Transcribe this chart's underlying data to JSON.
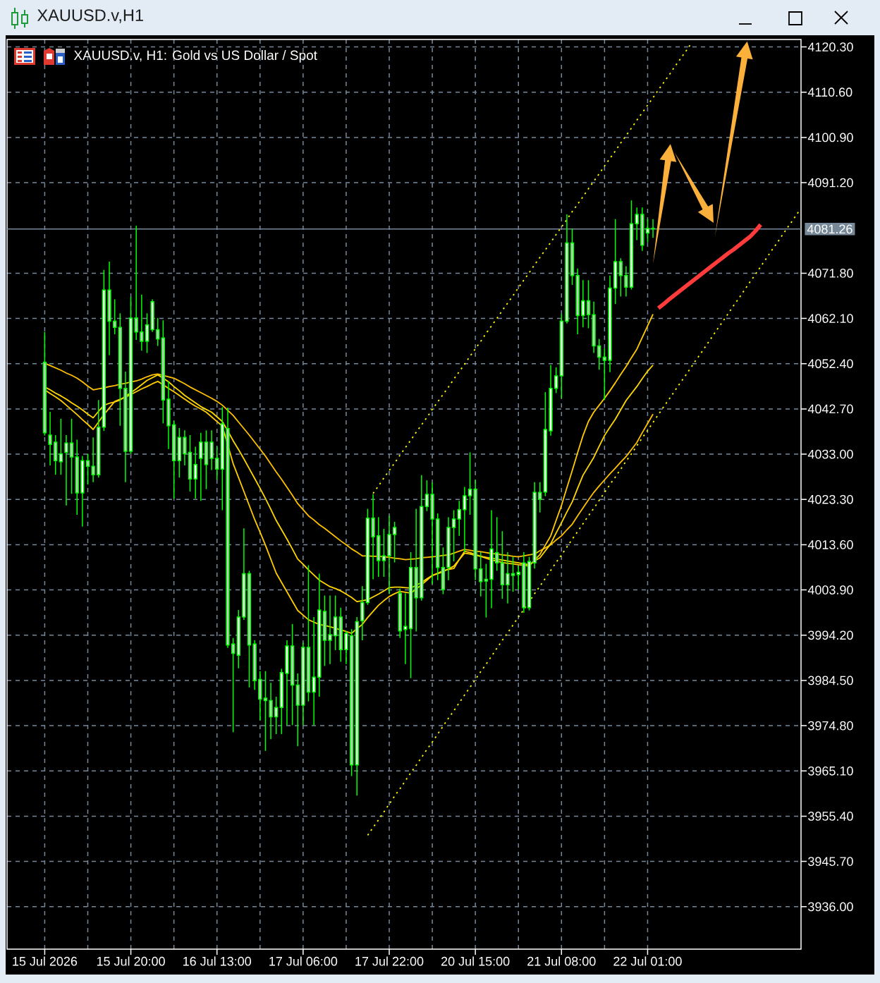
{
  "chart_data": {
    "type": "candlestick",
    "title": "XAUUSD.v,H1",
    "subtitle": "XAUUSD.v, H1: Gold vs US Dollar / Spot",
    "categories": [
      "15 Jul 2026",
      null,
      null,
      null,
      null,
      null,
      null,
      null,
      null,
      null,
      null,
      null,
      null,
      null,
      null,
      null,
      "15 Jul 20:00",
      null,
      null,
      null,
      null,
      null,
      null,
      null,
      null,
      null,
      null,
      null,
      null,
      null,
      null,
      null,
      "16 Jul 13:00",
      null,
      null,
      null,
      null,
      null,
      null,
      null,
      null,
      null,
      null,
      null,
      null,
      null,
      null,
      null,
      "17 Jul 06:00",
      null,
      null,
      null,
      null,
      null,
      null,
      null,
      null,
      null,
      null,
      null,
      null,
      null,
      null,
      null,
      "17 Jul 22:00",
      null,
      null,
      null,
      null,
      null,
      null,
      null,
      null,
      null,
      null,
      null,
      null,
      null,
      null,
      null,
      "20 Jul 15:00",
      null,
      null,
      null,
      null,
      null,
      null,
      null,
      null,
      null,
      null,
      null,
      null,
      null,
      null,
      null,
      "21 Jul 08:00",
      null,
      null,
      null,
      null,
      null,
      null,
      null,
      null,
      null,
      null,
      null,
      null,
      null,
      null,
      null,
      "22 Jul 01:00",
      null,
      null,
      null,
      null,
      null,
      null,
      null,
      null,
      null,
      null,
      null,
      null,
      null,
      null,
      null,
      null,
      null,
      null,
      null,
      null,
      null,
      null,
      null,
      null,
      null,
      null,
      null,
      null
    ],
    "ohlc": [
      [
        4052.7,
        4059.2,
        4037.0,
        4037.6
      ],
      [
        4037.1,
        4042.1,
        4030.6,
        4035.1
      ],
      [
        4035.6,
        4037.1,
        4028.6,
        4031.6
      ],
      [
        4031.4,
        4040.6,
        4028.6,
        4033.1
      ],
      [
        4033.4,
        4037.1,
        4022.0,
        4035.4
      ],
      [
        4035.4,
        4040.6,
        4024.5,
        4032.4
      ],
      [
        4032.4,
        4036.1,
        4020.0,
        4024.7
      ],
      [
        4024.7,
        4032.6,
        4017.5,
        4031.6
      ],
      [
        4031.6,
        4033.1,
        4026.5,
        4030.4
      ],
      [
        4030.4,
        4036.6,
        4027.0,
        4028.6
      ],
      [
        4028.6,
        4044.6,
        4028.0,
        4038.8
      ],
      [
        4038.8,
        4072.5,
        4038.0,
        4068.2
      ],
      [
        4068.2,
        4074.3,
        4054.2,
        4061.5
      ],
      [
        4061.5,
        4066.2,
        4058.7,
        4060.2
      ],
      [
        4060.2,
        4063.2,
        4039.1,
        4047.1
      ],
      [
        4047.1,
        4050.7,
        4027.0,
        4033.6
      ],
      [
        4033.6,
        4066.7,
        4033.0,
        4062.2
      ],
      [
        4062.2,
        4082.0,
        4057.5,
        4059.2
      ],
      [
        4059.2,
        4067.2,
        4055.2,
        4057.2
      ],
      [
        4057.2,
        4063.2,
        4054.7,
        4060.7
      ],
      [
        4059.7,
        4066.2,
        4059.2,
        4065.7
      ],
      [
        4059.7,
        4062.2,
        4056.2,
        4057.7
      ],
      [
        4057.9,
        4061.7,
        4039.6,
        4044.6
      ],
      [
        4044.8,
        4048.6,
        4034.1,
        4039.1
      ],
      [
        4039.3,
        4040.1,
        4023.5,
        4031.6
      ],
      [
        4031.6,
        4038.6,
        4028.0,
        4036.6
      ],
      [
        4036.6,
        4038.1,
        4030.6,
        4033.1
      ],
      [
        4033.4,
        4037.1,
        4025.0,
        4027.7
      ],
      [
        4027.7,
        4034.6,
        4023.5,
        4030.8
      ],
      [
        4032.1,
        4037.6,
        4023.0,
        4035.6
      ],
      [
        4035.6,
        4038.1,
        4025.5,
        4030.8
      ],
      [
        4032.1,
        4038.1,
        4029.6,
        4035.6
      ],
      [
        4032.1,
        4034.6,
        4027.5,
        4029.8
      ],
      [
        4029.8,
        4043.1,
        4021.0,
        4039.5
      ],
      [
        4038.5,
        4043.0,
        3991.5,
        3992.1
      ],
      [
        3992.3,
        3993.6,
        3973.4,
        3990.3
      ],
      [
        3989.9,
        3999.6,
        3987.1,
        3998.1
      ],
      [
        3998.1,
        4017.1,
        3997.5,
        4007.4
      ],
      [
        4007.4,
        4008.0,
        3983.0,
        3992.1
      ],
      [
        3992.3,
        3993.1,
        3982.5,
        3984.5
      ],
      [
        3984.7,
        3986.5,
        3976.0,
        3980.5
      ],
      [
        3980.7,
        3986.5,
        3969.4,
        3980.2
      ],
      [
        3980.2,
        3984.0,
        3971.9,
        3976.7
      ],
      [
        3976.7,
        3981.0,
        3973.0,
        3978.7
      ],
      [
        3978.7,
        3987.0,
        3973.0,
        3986.2
      ],
      [
        3986.0,
        3993.1,
        3974.9,
        3991.9
      ],
      [
        3991.9,
        3996.6,
        3974.9,
        3983.5
      ],
      [
        3983.5,
        3986.0,
        3970.4,
        3979.2
      ],
      [
        3979.2,
        3992.6,
        3974.9,
        3991.6
      ],
      [
        3991.6,
        4009.2,
        3980.0,
        3982.0
      ],
      [
        3982.0,
        3998.1,
        3974.9,
        3985.2
      ],
      [
        3985.2,
        4007.4,
        3981.0,
        3999.6
      ],
      [
        3999.3,
        4002.7,
        3987.6,
        3993.1
      ],
      [
        3993.1,
        4002.7,
        3988.0,
        3994.3
      ],
      [
        3994.1,
        4002.7,
        3991.0,
        3998.1
      ],
      [
        3998.1,
        4000.1,
        3988.5,
        3991.1
      ],
      [
        3991.1,
        3995.1,
        3988.0,
        3994.6
      ],
      [
        3994.1,
        3995.5,
        3964.0,
        3966.4
      ],
      [
        3966.4,
        3998.1,
        3959.8,
        3997.1
      ],
      [
        3997.3,
        4004.7,
        3993.1,
        4001.2
      ],
      [
        4001.2,
        4021.3,
        4000.7,
        4019.3
      ],
      [
        4019.3,
        4024.4,
        4006.2,
        4015.3
      ],
      [
        4015.5,
        4019.5,
        4006.7,
        4010.2
      ],
      [
        4010.2,
        4017.0,
        4006.7,
        4011.2
      ],
      [
        4011.2,
        4019.8,
        4003.0,
        4015.8
      ],
      [
        4015.8,
        4018.5,
        4009.8,
        4017.3
      ],
      [
        4003.2,
        4004.2,
        3993.6,
        3995.1
      ],
      [
        3995.4,
        4003.2,
        3988.0,
        3996.1
      ],
      [
        3995.6,
        4012.0,
        3985.0,
        4008.7
      ],
      [
        4008.7,
        4021.3,
        3995.0,
        4002.2
      ],
      [
        4002.2,
        4028.5,
        4001.6,
        4021.8
      ],
      [
        4021.8,
        4027.4,
        4020.8,
        4024.4
      ],
      [
        4024.4,
        4026.9,
        4005.2,
        4019.1
      ],
      [
        4019.1,
        4020.3,
        4006.0,
        4008.7
      ],
      [
        4008.7,
        4013.0,
        4003.0,
        4004.0
      ],
      [
        4008.7,
        4019.5,
        4006.0,
        4017.3
      ],
      [
        4017.3,
        4021.0,
        4010.0,
        4019.1
      ],
      [
        4019.1,
        4023.0,
        4015.5,
        4021.1
      ],
      [
        4021.1,
        4026.0,
        4012.0,
        4024.1
      ],
      [
        4024.1,
        4033.4,
        4020.0,
        4025.5
      ],
      [
        4025.5,
        4027.5,
        4006.0,
        4008.4
      ],
      [
        4008.4,
        4012.0,
        4002.5,
        4005.7
      ],
      [
        4005.8,
        4009.5,
        3998.0,
        4006.2
      ],
      [
        4006.2,
        4021.0,
        4000.0,
        4012.7
      ],
      [
        4011.9,
        4019.5,
        4008.0,
        4009.7
      ],
      [
        4009.7,
        4016.5,
        4002.0,
        4005.0
      ],
      [
        4005.0,
        4012.0,
        4001.0,
        4007.4
      ],
      [
        4007.4,
        4011.0,
        4003.5,
        4007.0
      ],
      [
        4007.2,
        4009.0,
        4004.0,
        4007.7
      ],
      [
        4009.7,
        4012.0,
        3999.0,
        4000.1
      ],
      [
        4000.1,
        4011.0,
        3999.5,
        4010.0
      ],
      [
        4009.7,
        4027.0,
        4008.5,
        4024.8
      ],
      [
        4024.8,
        4027.0,
        4020.5,
        4023.3
      ],
      [
        4024.9,
        4046.3,
        4024.0,
        4038.3
      ],
      [
        4038.0,
        4052.1,
        4037.0,
        4047.1
      ],
      [
        4047.1,
        4051.6,
        4046.1,
        4049.8
      ],
      [
        4049.8,
        4063.0,
        4045.0,
        4061.5
      ],
      [
        4061.5,
        4084.4,
        4061.0,
        4078.3
      ],
      [
        4078.3,
        4081.4,
        4069.3,
        4071.3
      ],
      [
        4071.3,
        4072.8,
        4058.7,
        4062.7
      ],
      [
        4062.7,
        4070.3,
        4060.2,
        4065.9
      ],
      [
        4065.9,
        4070.3,
        4060.0,
        4062.9
      ],
      [
        4062.9,
        4065.7,
        4054.7,
        4056.2
      ],
      [
        4056.2,
        4057.7,
        4051.1,
        4053.8
      ],
      [
        4053.8,
        4055.7,
        4044.6,
        4053.1
      ],
      [
        4053.1,
        4071.3,
        4050.6,
        4068.6
      ],
      [
        4068.6,
        4083.4,
        4065.2,
        4074.3
      ],
      [
        4074.3,
        4075.0,
        4066.8,
        4071.3
      ],
      [
        4071.3,
        4073.3,
        4066.8,
        4068.8
      ],
      [
        4068.8,
        4087.4,
        4068.3,
        4082.4
      ],
      [
        4082.4,
        4085.9,
        4078.9,
        4084.4
      ],
      [
        4084.4,
        4085.9,
        4076.6,
        4077.8
      ],
      [
        4080.4,
        4083.4,
        4078.4,
        4081.4
      ],
      [
        4081.4,
        4083.4,
        4079.4,
        4081.3
      ],
      null,
      null,
      null,
      null,
      null,
      null,
      null,
      null,
      null,
      null,
      null,
      null,
      null,
      null,
      null,
      null,
      null,
      null,
      null,
      null,
      null,
      null,
      null,
      null,
      null,
      null,
      null
    ],
    "color": "#00ff00",
    "colors": [
      "#c8c8c8",
      "#c8c8c8",
      "#c8c8c8",
      "#ffffff",
      "#ffffff",
      "#c8c8c8",
      "#c8c8c8",
      "#ffffff",
      "#c8c8c8",
      "#c8c8c8",
      "#ffffff",
      "#ffffff",
      "#c8c8c8",
      "#c8c8c8",
      "#c8c8c8",
      "#c8c8c8",
      "#ffffff",
      "#c8c8c8",
      "#c8c8c8",
      "#ffffff",
      "#ffffff",
      "#c8c8c8",
      "#c8c8c8",
      "#c8c8c8",
      "#c8c8c8",
      "#ffffff",
      "#c8c8c8",
      "#c8c8c8",
      "#ffffff",
      "#ffffff",
      "#c8c8c8",
      "#ffffff",
      "#c8c8c8",
      "#ffffff",
      "#c8c8c8",
      "#c8c8c8",
      "#ffffff",
      "#ffffff",
      "#c8c8c8",
      "#c8c8c8",
      "#c8c8c8",
      "#c8c8c8",
      "#c8c8c8",
      "#ffffff",
      "#ffffff",
      "#ffffff",
      "#c8c8c8",
      "#c8c8c8",
      "#ffffff",
      "#c8c8c8",
      "#ffffff",
      "#ffffff",
      "#c8c8c8",
      "#ffffff",
      "#ffffff",
      "#c8c8c8",
      "#ffffff",
      "#c8c8c8",
      "#ffffff",
      "#ffffff",
      "#ffffff",
      "#c8c8c8",
      "#c8c8c8",
      "#ffffff",
      "#ffffff",
      "#ffffff",
      "#c8c8c8",
      "#ffffff",
      "#ffffff",
      "#c8c8c8",
      "#ffffff",
      "#ffffff",
      "#c8c8c8",
      "#c8c8c8",
      "#c8c8c8",
      "#ffffff",
      "#ffffff",
      "#ffffff",
      "#ffffff",
      "#ffffff",
      "#c8c8c8",
      "#c8c8c8",
      "#ffffff",
      "#ffffff",
      "#c8c8c8",
      "#c8c8c8",
      "#ffffff",
      "#c8c8c8",
      "#ffffff",
      "#c8c8c8",
      "#ffffff",
      "#ffffff",
      "#c8c8c8",
      "#ffffff",
      "#ffffff",
      "#ffffff",
      "#ffffff",
      "#ffffff",
      "#c8c8c8",
      "#c8c8c8",
      "#ffffff",
      "#c8c8c8",
      "#c8c8c8",
      "#c8c8c8",
      "#c8c8c8",
      "#ffffff",
      "#ffffff",
      "#c8c8c8",
      "#c8c8c8",
      "#ffffff",
      "#ffffff",
      "#c8c8c8",
      "#ffffff",
      "#c8c8c8",
      null,
      null,
      null,
      null,
      null,
      null,
      null,
      null,
      null,
      null,
      null,
      null,
      null,
      null,
      null,
      null,
      null,
      null,
      null,
      null,
      null,
      null,
      null,
      null,
      null,
      null,
      null
    ],
    "series": [
      {
        "type": "line",
        "color": "#ffc000",
        "values": [
          4052.5,
          4052.0,
          4051.5,
          4051.0,
          4050.4,
          4049.9,
          4049.3,
          4048.5,
          4047.6,
          4046.8,
          4047.0,
          4047.2,
          4047.5,
          4047.7,
          4048.0,
          4048.2,
          4048.5,
          4048.7,
          4049.1,
          4049.6,
          4050.0,
          4050.2,
          4049.9,
          4049.6,
          4049.3,
          4048.7,
          4048.1,
          4047.4,
          4046.8,
          4046.2,
          4045.6,
          4045.0,
          4044.3,
          4043.5,
          4042.4,
          4041.3,
          4039.9,
          4038.5,
          4037.1,
          4035.6,
          4034.1,
          4032.6,
          4030.9,
          4029.2,
          4027.6,
          4025.9,
          4024.2,
          4022.4,
          4021.1,
          4019.8,
          4018.9,
          4017.9,
          4017.1,
          4016.2,
          4015.3,
          4014.4,
          4013.6,
          4012.7,
          4012.0,
          4011.2,
          4011.2,
          4011.1,
          4011.1,
          4011.0,
          4010.9,
          4010.7,
          4010.6,
          4010.4,
          4010.5,
          4010.6,
          4010.8,
          4010.9,
          4011.0,
          4011.1,
          4011.3,
          4011.4,
          4011.8,
          4012.2,
          4012.6,
          4012.4,
          4012.2,
          4012.1,
          4011.9,
          4011.7,
          4011.6,
          4011.4,
          4011.3,
          4011.1,
          4011.0,
          4011.2,
          4011.4,
          4011.6,
          4012.3,
          4012.9,
          4013.6,
          4014.6,
          4015.5,
          4016.8,
          4018.0,
          4019.8,
          4021.5,
          4023.2,
          4024.8,
          4026.2,
          4027.5,
          4028.8,
          4030.0,
          4031.3,
          4032.5,
          4034.0,
          4035.5,
          4037.6,
          4039.6,
          4041.6,
          null,
          null,
          null,
          null,
          null,
          null,
          null,
          null,
          null,
          null,
          null,
          null,
          null,
          null,
          null,
          null,
          null,
          null,
          null,
          null,
          null,
          null,
          null,
          null,
          null,
          null,
          null
        ]
      },
      {
        "type": "line",
        "color": "#ffd700",
        "values": [
          4047.4,
          4046.8,
          4046.1,
          4045.5,
          4044.8,
          4044.0,
          4043.3,
          4042.5,
          4041.6,
          4040.8,
          4042.2,
          4043.5,
          4043.9,
          4044.2,
          4044.6,
          4045.4,
          4046.2,
          4047.0,
          4047.9,
          4048.8,
          4049.4,
          4050.0,
          4049.3,
          4048.5,
          4047.5,
          4046.6,
          4045.6,
          4044.8,
          4044.0,
          4043.2,
          4042.6,
          4042.0,
          4041.0,
          4040.0,
          4038.0,
          4035.9,
          4034.0,
          4032.0,
          4029.9,
          4027.8,
          4025.7,
          4023.5,
          4021.2,
          4018.8,
          4016.8,
          4014.8,
          4012.7,
          4010.5,
          4009.4,
          4008.2,
          4007.1,
          4006.0,
          4005.3,
          4004.6,
          4004.2,
          4003.7,
          4003.0,
          4002.3,
          4001.4,
          4001.6,
          4001.8,
          4002.4,
          4003.0,
          4003.7,
          4004.4,
          4004.5,
          4004.5,
          4004.4,
          4004.3,
          4004.9,
          4005.5,
          4006.3,
          4007.0,
          4007.4,
          4007.8,
          4008.4,
          4009.0,
          4010.4,
          4011.8,
          4011.6,
          4011.3,
          4011.1,
          4010.9,
          4010.7,
          4010.5,
          4010.3,
          4010.1,
          4009.9,
          4009.7,
          4009.5,
          4009.3,
          4010.1,
          4010.8,
          4012.3,
          4013.8,
          4016.1,
          4018.3,
          4020.6,
          4022.8,
          4025.7,
          4028.5,
          4030.4,
          4032.3,
          4034.7,
          4037.0,
          4038.8,
          4040.5,
          4042.5,
          4044.5,
          4046.0,
          4047.5,
          4049.2,
          4050.8,
          4052.1,
          null,
          null,
          null,
          null,
          null,
          null,
          null,
          null,
          null,
          null,
          null,
          null,
          null,
          null,
          null,
          null,
          null,
          null,
          null,
          null,
          null,
          null,
          null,
          null,
          null,
          null,
          null
        ]
      },
      {
        "type": "line",
        "color": "#ffcc00",
        "values": [
          4046.8,
          4046.0,
          4045.3,
          4044.5,
          4043.5,
          4042.5,
          4041.5,
          4040.4,
          4039.4,
          4038.3,
          4039.9,
          4041.5,
          4042.9,
          4044.3,
          4044.8,
          4045.2,
          4045.8,
          4046.4,
          4047.0,
          4047.5,
          4048.1,
          4048.6,
          4047.9,
          4047.1,
          4046.4,
          4045.6,
          4044.8,
          4044.0,
          4043.3,
          4042.7,
          4042.0,
          4041.0,
          4040.0,
          4039.0,
          4035.0,
          4031.0,
          4028.0,
          4025.0,
          4022.0,
          4019.0,
          4016.3,
          4013.5,
          4010.5,
          4007.5,
          4005.5,
          4003.5,
          4001.5,
          3999.5,
          3998.5,
          3997.5,
          3997.0,
          3996.5,
          3996.3,
          3996.0,
          3995.7,
          3995.3,
          3995.0,
          3994.6,
          3995.6,
          3996.5,
          3998.0,
          3999.3,
          4000.6,
          4001.6,
          4002.5,
          4003.1,
          4003.6,
          4003.4,
          4003.2,
          4004.1,
          4005.0,
          4006.0,
          4007.0,
          4007.5,
          4008.0,
          4008.3,
          4008.5,
          4010.4,
          4012.2,
          4011.9,
          4011.5,
          4011.1,
          4010.7,
          4010.3,
          4010.1,
          4009.8,
          4009.6,
          4009.5,
          4009.3,
          4009.2,
          4009.0,
          4010.3,
          4011.5,
          4013.5,
          4015.5,
          4018.8,
          4022.0,
          4025.8,
          4029.5,
          4033.3,
          4037.0,
          4040.0,
          4042.0,
          4043.5,
          4045.0,
          4046.6,
          4048.3,
          4050.1,
          4051.8,
          4053.7,
          4055.5,
          4058.0,
          4060.5,
          4063.0,
          null,
          null,
          null,
          null,
          null,
          null,
          null,
          null,
          null,
          null,
          null,
          null,
          null,
          null,
          null,
          null,
          null,
          null,
          null,
          null,
          null,
          null,
          null,
          null,
          null,
          null,
          null
        ]
      },
      {
        "type": "line",
        "color": "#ffff00",
        "line_style": "dotted",
        "values": [
          null,
          null,
          null,
          null,
          null,
          null,
          null,
          null,
          null,
          null,
          null,
          null,
          null,
          null,
          null,
          null,
          null,
          null,
          null,
          null,
          null,
          null,
          null,
          null,
          null,
          null,
          null,
          null,
          null,
          null,
          null,
          null,
          null,
          null,
          null,
          null,
          null,
          null,
          null,
          null,
          null,
          null,
          null,
          null,
          null,
          null,
          null,
          null,
          null,
          null,
          null,
          null,
          null,
          null,
          null,
          null,
          null,
          null,
          null,
          null,
          null,
          4024.6,
          4026.2,
          4027.9,
          4029.5,
          4031.1,
          4032.8,
          4034.4,
          4036.0,
          4037.7,
          4039.3,
          4040.9,
          4042.6,
          4044.2,
          4045.8,
          4047.4,
          4049.1,
          4050.7,
          4052.3,
          4054.0,
          4055.6,
          4057.2,
          4058.9,
          4060.5,
          4062.1,
          4063.8,
          4065.4,
          4067.0,
          4068.7,
          4070.3,
          4071.9,
          4073.6,
          4075.2,
          4076.8,
          4078.4,
          4080.1,
          4081.7,
          4083.3,
          4085.0,
          4086.6,
          4088.2,
          4089.9,
          4091.5,
          4093.1,
          4094.8,
          4096.4,
          4098.0,
          4099.7,
          4101.3,
          4102.9,
          4104.6,
          4106.2,
          4107.8,
          4109.4,
          4111.1,
          4112.7,
          4114.3,
          4116.0,
          4117.6,
          4119.2,
          4120.9,
          null,
          null,
          null,
          null,
          null,
          null,
          null,
          null,
          null,
          null,
          null,
          null,
          null,
          null,
          null,
          null,
          null,
          null,
          null,
          null
        ]
      },
      {
        "type": "line",
        "color": "#ffff00",
        "line_style": "dotted",
        "values": [
          null,
          null,
          null,
          null,
          null,
          null,
          null,
          null,
          null,
          null,
          null,
          null,
          null,
          null,
          null,
          null,
          null,
          null,
          null,
          null,
          null,
          null,
          null,
          null,
          null,
          null,
          null,
          null,
          null,
          null,
          null,
          null,
          null,
          null,
          null,
          null,
          null,
          null,
          null,
          null,
          null,
          null,
          null,
          null,
          null,
          null,
          null,
          null,
          null,
          null,
          null,
          null,
          null,
          null,
          null,
          null,
          null,
          null,
          null,
          null,
          3951.3,
          3953.0,
          3954.6,
          3956.3,
          3958.0,
          3959.7,
          3961.3,
          3963.0,
          3964.7,
          3966.3,
          3968.0,
          3969.7,
          3971.3,
          3973.0,
          3974.7,
          3976.4,
          3978.0,
          3979.7,
          3981.4,
          3983.0,
          3984.7,
          3986.4,
          3988.0,
          3989.7,
          3991.4,
          3993.1,
          3994.7,
          3996.4,
          3998.1,
          3999.7,
          4001.4,
          4003.1,
          4004.7,
          4006.4,
          4008.1,
          4009.8,
          4011.4,
          4013.1,
          4014.8,
          4016.4,
          4018.1,
          4019.8,
          4021.4,
          4023.1,
          4024.8,
          4026.5,
          4028.1,
          4029.8,
          4031.5,
          4033.1,
          4034.8,
          4036.5,
          4038.1,
          4039.8,
          4041.5,
          4043.2,
          4044.8,
          4046.5,
          4048.2,
          4049.8,
          4051.5,
          4053.2,
          4054.8,
          4056.5,
          4058.2,
          4059.9,
          4061.5,
          4063.2,
          4064.9,
          4066.5,
          4068.2,
          4069.9,
          4071.5,
          4073.2,
          4074.9,
          4076.6,
          4078.2,
          4079.9,
          4081.6,
          4083.2,
          4084.9
        ]
      },
      {
        "type": "line",
        "color": "#ff3b3b",
        "values": [
          null,
          null,
          null,
          null,
          null,
          null,
          null,
          null,
          null,
          null,
          null,
          null,
          null,
          null,
          null,
          null,
          null,
          null,
          null,
          null,
          null,
          null,
          null,
          null,
          null,
          null,
          null,
          null,
          null,
          null,
          null,
          null,
          null,
          null,
          null,
          null,
          null,
          null,
          null,
          null,
          null,
          null,
          null,
          null,
          null,
          null,
          null,
          null,
          null,
          null,
          null,
          null,
          null,
          null,
          null,
          null,
          null,
          null,
          null,
          null,
          null,
          null,
          null,
          null,
          null,
          null,
          null,
          null,
          null,
          null,
          null,
          null,
          null,
          null,
          null,
          null,
          null,
          null,
          null,
          null,
          null,
          null,
          null,
          null,
          null,
          null,
          null,
          null,
          null,
          null,
          null,
          null,
          null,
          null,
          null,
          null,
          null,
          null,
          null,
          null,
          null,
          null,
          null,
          null,
          null,
          null,
          null,
          null,
          null,
          null,
          null,
          null,
          null,
          null,
          4064.3,
          4065.2,
          4066.2,
          4067.1,
          4068.0,
          4068.9,
          4069.8,
          4070.7,
          4071.6,
          4072.5,
          4073.4,
          4074.3,
          4075.2,
          4076.1,
          4076.9,
          4077.8,
          4078.7,
          4079.6,
          4080.8,
          4082.2,
          null,
          null,
          null,
          null,
          null,
          null,
          null
        ]
      }
    ],
    "ylim": [
      3926.9,
      4121.9
    ],
    "yticks": [
      {
        "value": 4120.3,
        "label": "4120.30"
      },
      {
        "value": 4110.6,
        "label": "4110.60"
      },
      {
        "value": 4100.9,
        "label": "4100.90"
      },
      {
        "value": 4091.2,
        "label": "4091.20"
      },
      {
        "value": 4071.8,
        "label": "4071.80"
      },
      {
        "value": 4062.1,
        "label": "4062.10"
      },
      {
        "value": 4052.4,
        "label": "4052.40"
      },
      {
        "value": 4042.7,
        "label": "4042.70"
      },
      {
        "value": 4033.0,
        "label": "4033.00"
      },
      {
        "value": 4023.3,
        "label": "4023.30"
      },
      {
        "value": 4013.6,
        "label": "4013.60"
      },
      {
        "value": 4003.9,
        "label": "4003.90"
      },
      {
        "value": 3994.2,
        "label": "3994.20"
      },
      {
        "value": 3984.5,
        "label": "3984.50"
      },
      {
        "value": 3974.8,
        "label": "3974.80"
      },
      {
        "value": 3965.1,
        "label": "3965.10"
      },
      {
        "value": 3955.4,
        "label": "3955.40"
      },
      {
        "value": 3945.7,
        "label": "3945.70"
      },
      {
        "value": 3936.0,
        "label": "3936.00"
      }
    ],
    "ref_lines": [
      {
        "axis": "y",
        "value": 4081.26,
        "label": "4081.26",
        "color": "#778899"
      }
    ],
    "grid": true
  }
}
